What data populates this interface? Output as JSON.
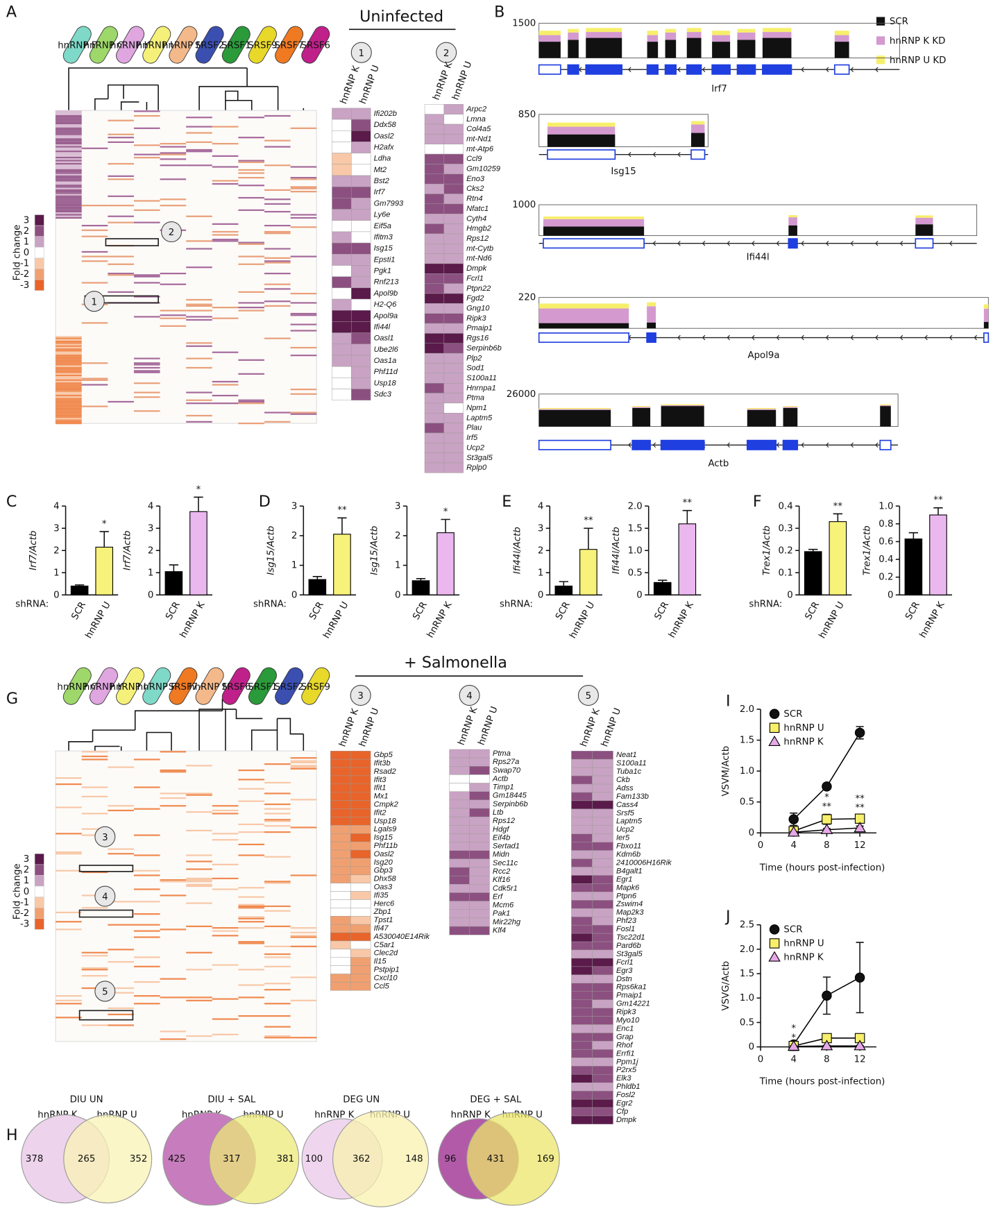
{
  "panels": {
    "A": "A",
    "B": "B",
    "G": "G"
  },
  "fold_change": {
    "title": "Fold change",
    "ticks": [
      3,
      2,
      1,
      0,
      -1,
      -2,
      -3
    ],
    "colors": [
      "#5a1a4a",
      "#8c5080",
      "#c9a3c3",
      "#ffffff",
      "#f8c8a8",
      "#f0a070",
      "#e8642a"
    ]
  },
  "clusters": [
    {
      "title": "Uninfected",
      "factors": [
        "hnRNP F",
        "hnRNP C",
        "hnRNP K",
        "hnRNP U",
        "hnRNP M",
        "SRSF2",
        "SRSF1",
        "SRSF9",
        "SRSF7",
        "SRSF6"
      ],
      "factor_colors": [
        "#7fd9c8",
        "#9ed86a",
        "#e0a6e0",
        "#f5f07a",
        "#f4b98a",
        "#3a4fb0",
        "#2a9a3a",
        "#e8d82a",
        "#f07a22",
        "#c0208a"
      ]
    },
    {
      "title": "+ Salmonella",
      "factors": [
        "hnRNP C",
        "hnRNP K",
        "hnRNP U",
        "hnRNP F",
        "SRSF7",
        "hnRNP M",
        "SRSF6",
        "SRSF1",
        "SRSF2",
        "SRSF9"
      ],
      "factor_colors": [
        "#9ed86a",
        "#e0a6e0",
        "#f5f07a",
        "#7fd9c8",
        "#f07a22",
        "#f4b98a",
        "#c0208a",
        "#2a9a3a",
        "#3a4fb0",
        "#e8d82a"
      ]
    }
  ],
  "coverage": {
    "legend": [
      {
        "name": "SCR",
        "color": "#111111"
      },
      {
        "name": "hnRNP K KD",
        "color": "#d49ad0"
      },
      {
        "name": "hnRNP U KD",
        "color": "#f7ef6a"
      }
    ],
    "genes": [
      {
        "name": "Irf7",
        "max": 1500
      },
      {
        "name": "Isg15",
        "max": 850
      },
      {
        "name": "Ifi44l",
        "max": 1000
      },
      {
        "name": "Apol9a",
        "max": 220
      },
      {
        "name": "Actb",
        "max": 26000
      }
    ]
  },
  "chart_data": [
    {
      "type": "heatmap",
      "label": "1",
      "categories": [
        "Ifi202b",
        "Ddx58",
        "Oasl2",
        "H2afx",
        "Ldha",
        "Mt2",
        "Bst2",
        "Irf7",
        "Gm7993",
        "Ly6e",
        "Eif5a",
        "Ifitm3",
        "Isg15",
        "Epsti1",
        "Pgk1",
        "Rnf213",
        "Apol9b",
        "H2-Q6",
        "Apol9a",
        "Ifi44l",
        "Oasl1",
        "Ube2l6",
        "Oas1a",
        "Phf11d",
        "Usp18",
        "Sdc3"
      ],
      "series": [
        {
          "name": "hnRNP K",
          "values": [
            1,
            0,
            0,
            0,
            -1,
            -1,
            1,
            2,
            2,
            1,
            0,
            1,
            2,
            1,
            0,
            2,
            0,
            1,
            3,
            3,
            1,
            1,
            1,
            0,
            0,
            0
          ]
        },
        {
          "name": "hnRNP U",
          "values": [
            1,
            2,
            3,
            1,
            0,
            0,
            1,
            2,
            1,
            1,
            0,
            0,
            2,
            1,
            1,
            1,
            3,
            0,
            3,
            3,
            2,
            1,
            1,
            1,
            1,
            2
          ]
        }
      ]
    },
    {
      "type": "heatmap",
      "label": "2",
      "categories": [
        "Arpc2",
        "Lmna",
        "Col4a5",
        "mt-Nd1",
        "mt-Atp6",
        "Ccl9",
        "Gm10259",
        "Eno3",
        "Cks2",
        "Rtn4",
        "Nfatc1",
        "Cyth4",
        "Hmgb2",
        "Rps12",
        "mt-Cytb",
        "mt-Nd6",
        "Dmpk",
        "Fcrl1",
        "Ptpn22",
        "Fgd2",
        "Gng10",
        "Ripk3",
        "Pmaip1",
        "Rgs16",
        "Serpinb6b",
        "Plp2",
        "Sod1",
        "S100a11",
        "Hnrnpa1",
        "Ptma",
        "Npm1",
        "Laptm5",
        "Plau",
        "Irf5",
        "Ucp2",
        "St3gal5",
        "Rplp0"
      ],
      "series": [
        {
          "name": "hnRNP K",
          "values": [
            0,
            1,
            1,
            1,
            0,
            2,
            2,
            2,
            1,
            2,
            2,
            1,
            2,
            1,
            1,
            1,
            3,
            2,
            2,
            3,
            1,
            2,
            1,
            3,
            3,
            1,
            1,
            1,
            2,
            1,
            1,
            1,
            2,
            1,
            1,
            1,
            1
          ]
        },
        {
          "name": "hnRNP U",
          "values": [
            1,
            0,
            1,
            1,
            0,
            2,
            1,
            2,
            2,
            1,
            2,
            1,
            1,
            1,
            1,
            1,
            3,
            2,
            1,
            3,
            1,
            2,
            1,
            3,
            2,
            1,
            1,
            1,
            1,
            1,
            0,
            1,
            1,
            1,
            1,
            1,
            1
          ]
        }
      ]
    },
    {
      "type": "bar",
      "panel": "C",
      "xlabel": "shRNA:",
      "ylabel": "Irf7/Actb",
      "categories": [
        "SCR",
        "hnRNP U"
      ],
      "values": [
        0.4,
        2.15
      ],
      "errors": [
        0.05,
        0.7
      ],
      "colors": [
        "#000000",
        "#f7f27a"
      ],
      "annotation": "*",
      "ylim": [
        0,
        4
      ],
      "yticks": [
        0,
        1,
        2,
        3,
        4
      ]
    },
    {
      "type": "bar",
      "ylabel": "Irf7/Actb",
      "categories": [
        "SCR",
        "hnRNP K"
      ],
      "values": [
        1.05,
        3.75
      ],
      "errors": [
        0.3,
        0.65
      ],
      "colors": [
        "#000000",
        "#eab8ee"
      ],
      "annotation": "*",
      "ylim": [
        0,
        4
      ],
      "yticks": [
        0,
        1,
        2,
        3,
        4
      ]
    },
    {
      "type": "bar",
      "panel": "D",
      "xlabel": "shRNA:",
      "ylabel": "Isg15/Actb",
      "categories": [
        "SCR",
        "hnRNP U"
      ],
      "values": [
        0.52,
        2.05
      ],
      "errors": [
        0.1,
        0.55
      ],
      "colors": [
        "#000000",
        "#f7f27a"
      ],
      "annotation": "**",
      "ylim": [
        0,
        3
      ],
      "yticks": [
        0,
        1,
        2,
        3
      ]
    },
    {
      "type": "bar",
      "ylabel": "Isg15/Actb",
      "categories": [
        "SCR",
        "hnRNP K"
      ],
      "values": [
        0.48,
        2.1
      ],
      "errors": [
        0.07,
        0.45
      ],
      "colors": [
        "#000000",
        "#eab8ee"
      ],
      "annotation": "*",
      "ylim": [
        0,
        3
      ],
      "yticks": [
        0,
        1,
        2,
        3
      ]
    },
    {
      "type": "bar",
      "panel": "E",
      "xlabel": "shRNA:",
      "ylabel": "Ifi44l/Actb",
      "categories": [
        "SCR",
        "hnRNP U"
      ],
      "values": [
        0.4,
        2.05
      ],
      "errors": [
        0.2,
        0.95
      ],
      "colors": [
        "#000000",
        "#f7f27a"
      ],
      "annotation": "**",
      "ylim": [
        0,
        4
      ],
      "yticks": [
        0,
        1,
        2,
        3,
        4
      ]
    },
    {
      "type": "bar",
      "ylabel": "Ifi44l/Actb",
      "categories": [
        "SCR",
        "hnRNP K"
      ],
      "values": [
        0.28,
        1.6
      ],
      "errors": [
        0.05,
        0.3
      ],
      "colors": [
        "#000000",
        "#eab8ee"
      ],
      "annotation": "**",
      "ylim": [
        0,
        2
      ],
      "yticks": [
        0,
        0.5,
        {
          "value": 1,
          "label": "1.0"
        },
        1.5,
        {
          "value": 2,
          "label": "2.0"
        }
      ]
    },
    {
      "type": "bar",
      "panel": "F",
      "xlabel": "shRNA:",
      "ylabel": "Trex1/Actb",
      "categories": [
        "SCR",
        "hnRNP U"
      ],
      "values": [
        0.195,
        0.33
      ],
      "errors": [
        0.01,
        0.035
      ],
      "colors": [
        "#000000",
        "#f7f27a"
      ],
      "annotation": "**",
      "ylim": [
        0,
        0.4
      ],
      "yticks": [
        0,
        0.1,
        0.2,
        0.3,
        0.4
      ]
    },
    {
      "type": "bar",
      "ylabel": "Trex1/Actb",
      "categories": [
        "SCR",
        "hnRNP K"
      ],
      "values": [
        0.63,
        0.9
      ],
      "errors": [
        0.07,
        0.08
      ],
      "colors": [
        "#000000",
        "#eab8ee"
      ],
      "annotation": "**",
      "ylim": [
        0,
        1
      ],
      "yticks": [
        0,
        0.2,
        0.4,
        0.6,
        0.8,
        {
          "value": 1,
          "label": "1.0"
        }
      ]
    },
    {
      "type": "heatmap",
      "label": "3",
      "categories": [
        "Gbp5",
        "Ifit3b",
        "Rsad2",
        "Ifit3",
        "Ifit1",
        "Mx1",
        "Cmpk2",
        "Ifit2",
        "Usp18",
        "Lgals9",
        "Isg15",
        "Phf11b",
        "Oasl2",
        "Isg20",
        "Gbp3",
        "Dhx58",
        "Oas3",
        "Ifi35",
        "Herc6",
        "Zbp1",
        "Tpst1",
        "Ifi47",
        "A530040E14Rik",
        "C5ar1",
        "Clec2d",
        "Il15",
        "Pstpip1",
        "Cxcl10",
        "Ccl5"
      ],
      "series": [
        {
          "name": "hnRNP K",
          "values": [
            -3,
            -3,
            -3,
            -3,
            -3,
            -3,
            -3,
            -3,
            -3,
            -2,
            -2,
            -2,
            -2,
            -2,
            -2,
            -2,
            0,
            0,
            0,
            0,
            -2,
            -2,
            -3,
            -1,
            0,
            0,
            0,
            -2,
            -2
          ]
        },
        {
          "name": "hnRNP U",
          "values": [
            -3,
            -3,
            -3,
            -3,
            -3,
            -3,
            -3,
            -3,
            -3,
            -2,
            -3,
            -2,
            -3,
            -2,
            -2,
            -1,
            0,
            -1,
            0,
            0,
            -1,
            -2,
            -3,
            0,
            -1,
            -2,
            -2,
            -2,
            -2
          ]
        }
      ]
    },
    {
      "type": "heatmap",
      "label": "4",
      "categories": [
        "Ptma",
        "Rps27a",
        "Swap70",
        "Actb",
        "Timp1",
        "Gm18445",
        "Serpinb6b",
        "Ltb",
        "Rps12",
        "Hdgf",
        "Eif4b",
        "Sertad1",
        "Midn",
        "Sec11c",
        "Rcc2",
        "Klf16",
        "Cdk5r1",
        "Erf",
        "Mcm6",
        "Pak1",
        "Mir22hg",
        "Klf4"
      ],
      "series": [
        {
          "name": "hnRNP K",
          "values": [
            1,
            1,
            1,
            0,
            0,
            1,
            1,
            1,
            1,
            1,
            1,
            1,
            2,
            1,
            2,
            2,
            1,
            2,
            1,
            1,
            1,
            2
          ]
        },
        {
          "name": "hnRNP U",
          "values": [
            1,
            1,
            2,
            0,
            1,
            2,
            1,
            2,
            1,
            1,
            1,
            1,
            2,
            1,
            1,
            1,
            1,
            2,
            1,
            1,
            1,
            2
          ]
        }
      ]
    },
    {
      "type": "heatmap",
      "label": "5",
      "categories": [
        "Neat1",
        "S100a11",
        "Tuba1c",
        "Ckb",
        "Adss",
        "Fam133b",
        "Cass4",
        "Srsf5",
        "Laptm5",
        "Ucp2",
        "Ier5",
        "Fbxo11",
        "Kdm6b",
        "2410006H16Rik",
        "B4galt1",
        "Egr1",
        "Mapk6",
        "Ptpn6",
        "Zswim4",
        "Map2k3",
        "Phf23",
        "Fosl1",
        "Tsc22d1",
        "Pard6b",
        "St3gal5",
        "Fcrl1",
        "Egr3",
        "Dstn",
        "Rps6ka1",
        "Pmaip1",
        "Gm14221",
        "Ripk3",
        "Myo10",
        "Enc1",
        "Grap",
        "Rhof",
        "Errfi1",
        "Ppm1j",
        "P2rx5",
        "Elk3",
        "Phldb1",
        "Fosl2",
        "Egr2",
        "Cfp",
        "Dmpk"
      ],
      "series": [
        {
          "name": "hnRNP K",
          "values": [
            2,
            1,
            1,
            2,
            1,
            2,
            3,
            1,
            1,
            1,
            2,
            2,
            1,
            2,
            1,
            3,
            2,
            1,
            2,
            1,
            2,
            2,
            3,
            2,
            1,
            3,
            3,
            1,
            2,
            2,
            2,
            2,
            2,
            1,
            2,
            2,
            2,
            1,
            2,
            3,
            1,
            2,
            3,
            2,
            3
          ]
        },
        {
          "name": "hnRNP U",
          "values": [
            2,
            1,
            1,
            1,
            1,
            1,
            3,
            1,
            1,
            1,
            1,
            2,
            1,
            1,
            1,
            2,
            2,
            1,
            2,
            1,
            1,
            2,
            2,
            2,
            1,
            3,
            2,
            1,
            2,
            2,
            1,
            2,
            2,
            1,
            2,
            1,
            2,
            1,
            2,
            2,
            1,
            2,
            3,
            2,
            3
          ]
        }
      ]
    },
    {
      "type": "line",
      "panel": "I",
      "ylabel": "VSVM/Actb",
      "xlabel": "Time (hours post-infection)",
      "x": [
        4,
        8,
        12
      ],
      "xlim": [
        0,
        14
      ],
      "xticks": [
        0,
        4,
        8,
        12
      ],
      "ylim": [
        0,
        2
      ],
      "yticks": [
        0,
        0.5,
        {
          "value": 1,
          "label": "1.0"
        },
        1.5,
        {
          "value": 2,
          "label": "2.0"
        }
      ],
      "series": [
        {
          "name": "SCR",
          "color": "#111111",
          "marker": "circle",
          "values": [
            0.22,
            0.75,
            1.62
          ],
          "errors": [
            0.1,
            0.03,
            0.1
          ]
        },
        {
          "name": "hnRNP U",
          "color": "#f7ef6a",
          "marker": "square",
          "values": [
            0.03,
            0.22,
            0.23
          ],
          "errors": [
            0.02,
            0.08,
            0.05
          ]
        },
        {
          "name": "hnRNP K",
          "color": "#e6a8e8",
          "marker": "triangle",
          "values": [
            0.01,
            0.05,
            0.08
          ],
          "errors": [
            0.01,
            0.02,
            0.03
          ]
        }
      ],
      "annotations": [
        {
          "x": 8,
          "lines": [
            "*",
            "**"
          ]
        },
        {
          "x": 12,
          "lines": [
            "**",
            "**"
          ]
        }
      ]
    },
    {
      "type": "line",
      "panel": "J",
      "ylabel": "VSVG/Actb",
      "xlabel": "Time (hours post-infection)",
      "x": [
        4,
        8,
        12
      ],
      "xlim": [
        0,
        14
      ],
      "xticks": [
        0,
        4,
        8,
        12
      ],
      "ylim": [
        0,
        2.5
      ],
      "yticks": [
        0,
        0.5,
        {
          "value": 1,
          "label": "1.0"
        },
        1.5,
        {
          "value": 2,
          "label": "2.0"
        },
        2.5
      ],
      "series": [
        {
          "name": "SCR",
          "color": "#111111",
          "marker": "circle",
          "values": [
            0.05,
            1.05,
            1.42
          ],
          "errors": [
            0.02,
            0.38,
            0.72
          ]
        },
        {
          "name": "hnRNP U",
          "color": "#f7ef6a",
          "marker": "square",
          "values": [
            0.02,
            0.18,
            0.18
          ],
          "errors": [
            0.01,
            0.05,
            0.05
          ]
        },
        {
          "name": "hnRNP K",
          "color": "#e6a8e8",
          "marker": "triangle",
          "values": [
            0.01,
            0.02,
            0.02
          ],
          "errors": [
            0.01,
            0.01,
            0.01
          ]
        }
      ],
      "annotations": [
        {
          "x": 4,
          "lines": [
            "*",
            "*"
          ]
        }
      ]
    },
    {
      "type": "venn",
      "panel": "H",
      "title": "DIU UN",
      "series": [
        {
          "name": "hnRNP K",
          "color": "#edd3ec"
        },
        {
          "name": "hnRNP U",
          "color": "#f8f3b4"
        }
      ],
      "values": [
        378,
        265,
        352
      ]
    },
    {
      "type": "venn",
      "title": "DIU + SAL",
      "series": [
        {
          "name": "hnRNP K",
          "color": "#c77dbd"
        },
        {
          "name": "hnRNP U",
          "color": "#ece978"
        }
      ],
      "values": [
        425,
        317,
        381
      ]
    },
    {
      "type": "venn",
      "title": "DEG UN",
      "series": [
        {
          "name": "hnRNP K",
          "color": "#efd6ee"
        },
        {
          "name": "hnRNP U",
          "color": "#f8f1ae"
        }
      ],
      "values": [
        100,
        362,
        148
      ]
    },
    {
      "type": "venn",
      "title": "DEG + SAL",
      "series": [
        {
          "name": "hnRNP K",
          "color": "#b25aa8"
        },
        {
          "name": "hnRNP U",
          "color": "#ebe66a"
        }
      ],
      "values": [
        96,
        431,
        169
      ]
    }
  ]
}
